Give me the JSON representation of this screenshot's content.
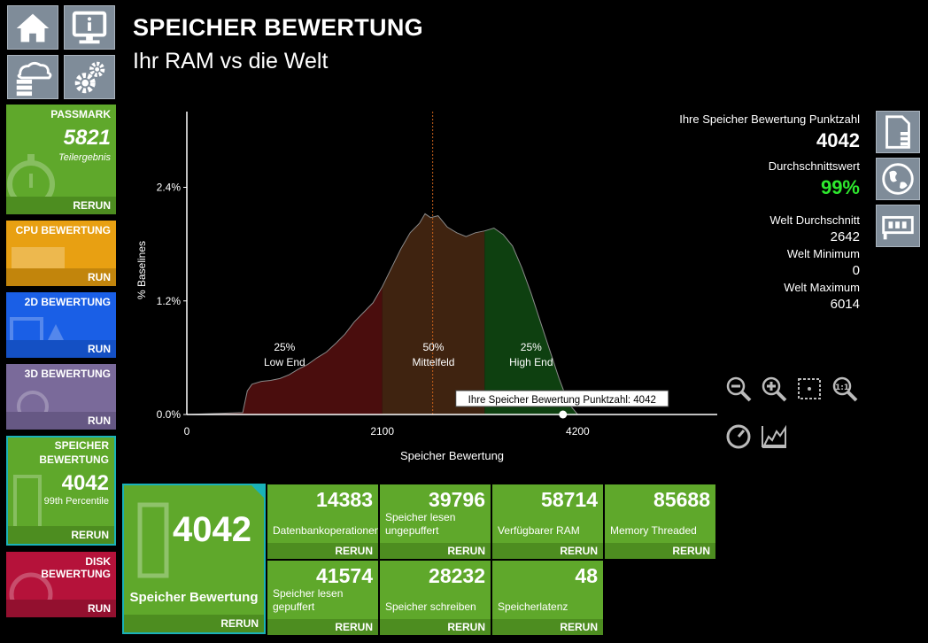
{
  "header": {
    "title": "SPEICHER BEWERTUNG",
    "subtitle": "Ihr RAM vs die Welt"
  },
  "nav_icons": [
    "home-icon",
    "info-monitor-icon",
    "cloud-database-icon",
    "gears-icon"
  ],
  "sidebar": {
    "passmark": {
      "title": "PASSMARK",
      "score": "5821",
      "sub": "Teilergebnis",
      "action": "RERUN",
      "color": "#5fa82b"
    },
    "cpu": {
      "title": "CPU BEWERTUNG",
      "action": "RUN",
      "color": "#e8a012"
    },
    "d2": {
      "title": "2D BEWERTUNG",
      "action": "RUN",
      "color": "#1a5fe6"
    },
    "d3": {
      "title": "3D BEWERTUNG",
      "action": "RUN",
      "color": "#7a6a9a"
    },
    "mem": {
      "title1": "SPEICHER",
      "title2": "BEWERTUNG",
      "score": "4042",
      "sub": "99th Percentile",
      "action": "RERUN",
      "color": "#5fa82b"
    },
    "disk": {
      "title1": "DISK",
      "title2": "BEWERTUNG",
      "action": "RUN",
      "color": "#b5123a"
    }
  },
  "stats": {
    "your_score_label": "Ihre Speicher Bewertung Punktzahl",
    "your_score": "4042",
    "avg_label": "Durchschnittswert",
    "avg_value": "99%",
    "world_avg_label": "Welt Durchschnitt",
    "world_avg": "2642",
    "world_min_label": "Welt Minimum",
    "world_min": "0",
    "world_max_label": "Welt Maximum",
    "world_max": "6014"
  },
  "right_icons": [
    "report-icon",
    "globe-icon",
    "ram-card-icon"
  ],
  "tools": [
    "zoom-out-icon",
    "zoom-in-icon",
    "fit-icon",
    "zoom-reset-icon",
    "gauge-icon",
    "area-chart-icon"
  ],
  "tiles": {
    "main": {
      "value": "4042",
      "label": "Speicher Bewertung",
      "action": "RERUN"
    },
    "subs": [
      {
        "value": "14383",
        "label": "Datenbankoperationen",
        "action": "RERUN"
      },
      {
        "value": "39796",
        "label": "Speicher lesen ungepuffert",
        "action": "RERUN"
      },
      {
        "value": "58714",
        "label": "Verfügbarer RAM",
        "action": "RERUN"
      },
      {
        "value": "85688",
        "label": "Memory Threaded",
        "action": "RERUN"
      },
      {
        "value": "41574",
        "label": "Speicher lesen gepuffert",
        "action": "RERUN"
      },
      {
        "value": "28232",
        "label": "Speicher schreiben",
        "action": "RERUN"
      },
      {
        "value": "48",
        "label": "Speicherlatenz",
        "action": "RERUN"
      }
    ]
  },
  "chart_data": {
    "type": "area",
    "xlabel": "Speicher Bewertung",
    "ylabel": "% Baselines",
    "xlim": [
      0,
      5700
    ],
    "ylim": [
      0,
      3.2
    ],
    "x_ticks": [
      0,
      2100,
      4200
    ],
    "x_tick_labels": [
      "0",
      "2100",
      "4200"
    ],
    "y_ticks": [
      0,
      1.2,
      2.4
    ],
    "y_tick_labels": [
      "0.0%",
      "1.2%",
      "2.4%"
    ],
    "median_x": 2642,
    "marker_x": 4042,
    "marker_label": "Ihre Speicher Bewertung Punktzahl: 4042",
    "segments": [
      {
        "x0": 0,
        "x1": 2100,
        "color": "#4a0d0d",
        "pct": "25%",
        "name": "Low End",
        "label_x": 1050
      },
      {
        "x0": 2100,
        "x1": 3200,
        "color": "#3f2310",
        "pct": "50%",
        "name": "Mittelfeld",
        "label_x": 2650
      },
      {
        "x0": 3200,
        "x1": 5700,
        "color": "#0e4010",
        "pct": "25%",
        "name": "High End",
        "label_x": 3700
      }
    ],
    "points": [
      [
        0,
        0.0
      ],
      [
        300,
        0.01
      ],
      [
        600,
        0.02
      ],
      [
        650,
        0.25
      ],
      [
        700,
        0.32
      ],
      [
        800,
        0.35
      ],
      [
        900,
        0.36
      ],
      [
        1000,
        0.38
      ],
      [
        1100,
        0.42
      ],
      [
        1200,
        0.48
      ],
      [
        1300,
        0.53
      ],
      [
        1400,
        0.6
      ],
      [
        1500,
        0.66
      ],
      [
        1600,
        0.75
      ],
      [
        1700,
        0.85
      ],
      [
        1800,
        0.98
      ],
      [
        1900,
        1.08
      ],
      [
        2000,
        1.18
      ],
      [
        2100,
        1.35
      ],
      [
        2200,
        1.55
      ],
      [
        2300,
        1.75
      ],
      [
        2400,
        1.92
      ],
      [
        2500,
        2.02
      ],
      [
        2560,
        2.12
      ],
      [
        2620,
        2.08
      ],
      [
        2700,
        2.1
      ],
      [
        2800,
        1.98
      ],
      [
        2900,
        1.92
      ],
      [
        3000,
        1.88
      ],
      [
        3100,
        1.92
      ],
      [
        3200,
        1.94
      ],
      [
        3300,
        1.97
      ],
      [
        3400,
        1.9
      ],
      [
        3500,
        1.78
      ],
      [
        3600,
        1.55
      ],
      [
        3700,
        1.28
      ],
      [
        3800,
        0.98
      ],
      [
        3900,
        0.68
      ],
      [
        4000,
        0.38
      ],
      [
        4100,
        0.12
      ],
      [
        4200,
        0.0
      ],
      [
        5700,
        0.0
      ]
    ]
  }
}
